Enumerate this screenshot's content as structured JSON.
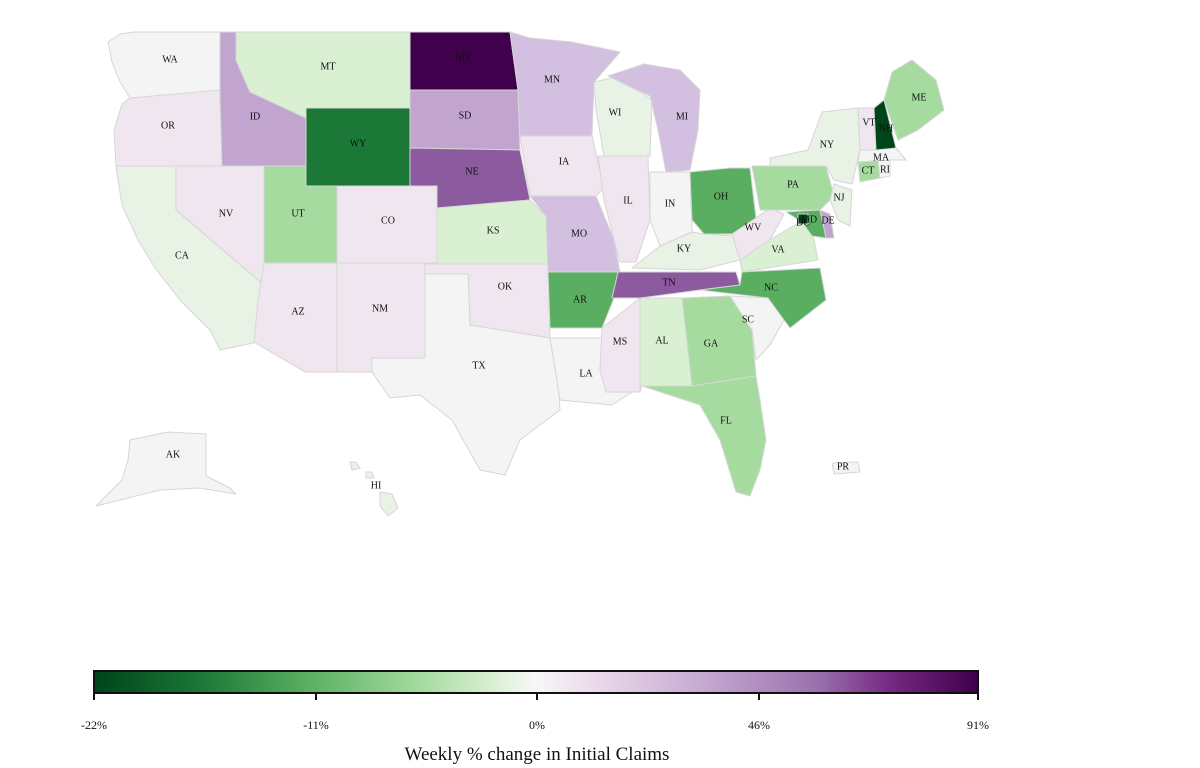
{
  "map": {
    "states": [
      {
        "id": "WA",
        "label": "WA"
      },
      {
        "id": "OR",
        "label": "OR"
      },
      {
        "id": "CA",
        "label": "CA"
      },
      {
        "id": "ID",
        "label": "ID"
      },
      {
        "id": "NV",
        "label": "NV"
      },
      {
        "id": "MT",
        "label": "MT"
      },
      {
        "id": "WY",
        "label": "WY"
      },
      {
        "id": "UT",
        "label": "UT"
      },
      {
        "id": "AZ",
        "label": "AZ"
      },
      {
        "id": "CO",
        "label": "CO"
      },
      {
        "id": "NM",
        "label": "NM"
      },
      {
        "id": "ND",
        "label": "ND"
      },
      {
        "id": "SD",
        "label": "SD"
      },
      {
        "id": "NE",
        "label": "NE"
      },
      {
        "id": "KS",
        "label": "KS"
      },
      {
        "id": "OK",
        "label": "OK"
      },
      {
        "id": "TX",
        "label": "TX"
      },
      {
        "id": "MN",
        "label": "MN"
      },
      {
        "id": "IA",
        "label": "IA"
      },
      {
        "id": "MO",
        "label": "MO"
      },
      {
        "id": "AR",
        "label": "AR"
      },
      {
        "id": "LA",
        "label": "LA"
      },
      {
        "id": "WI",
        "label": "WI"
      },
      {
        "id": "IL",
        "label": "IL"
      },
      {
        "id": "MI",
        "label": "MI"
      },
      {
        "id": "IN",
        "label": "IN"
      },
      {
        "id": "OH",
        "label": "OH"
      },
      {
        "id": "KY",
        "label": "KY"
      },
      {
        "id": "TN",
        "label": "TN"
      },
      {
        "id": "MS",
        "label": "MS"
      },
      {
        "id": "AL",
        "label": "AL"
      },
      {
        "id": "GA",
        "label": "GA"
      },
      {
        "id": "FL",
        "label": "FL"
      },
      {
        "id": "SC",
        "label": "SC"
      },
      {
        "id": "NC",
        "label": "NC"
      },
      {
        "id": "VA",
        "label": "VA"
      },
      {
        "id": "WV",
        "label": "WV"
      },
      {
        "id": "PA",
        "label": "PA"
      },
      {
        "id": "NY",
        "label": "NY"
      },
      {
        "id": "NJ",
        "label": "NJ"
      },
      {
        "id": "DE",
        "label": "DE"
      },
      {
        "id": "MD",
        "label": "MD"
      },
      {
        "id": "DC",
        "label": "DC"
      },
      {
        "id": "CT",
        "label": "CT"
      },
      {
        "id": "RI",
        "label": "RI"
      },
      {
        "id": "MA",
        "label": "MA"
      },
      {
        "id": "VT",
        "label": "VT"
      },
      {
        "id": "NH",
        "label": "NH"
      },
      {
        "id": "ME",
        "label": "ME"
      },
      {
        "id": "AK",
        "label": "AK"
      },
      {
        "id": "HI",
        "label": "HI"
      },
      {
        "id": "PR",
        "label": "PR"
      }
    ]
  },
  "colors": {
    "dark_green": "#00441b",
    "green": "#1b7837",
    "mid_green": "#5aae61",
    "light_green": "#a6dba0",
    "pale_green": "#d9f0d3",
    "faint_green": "#e8f2e5",
    "neutral": "#f4f4f4",
    "faint_purple": "#f0e6f0",
    "pale_purple": "#e7d4e8",
    "light_purple": "#d3bfe0",
    "mid_purple": "#c2a5cf",
    "purple": "#8c5a9e",
    "dark_purple": "#40004b"
  },
  "legend": {
    "title": "Weekly % change in Initial Claims",
    "ticks": [
      "-22%",
      "-11%",
      "0%",
      "46%",
      "91%"
    ]
  }
}
